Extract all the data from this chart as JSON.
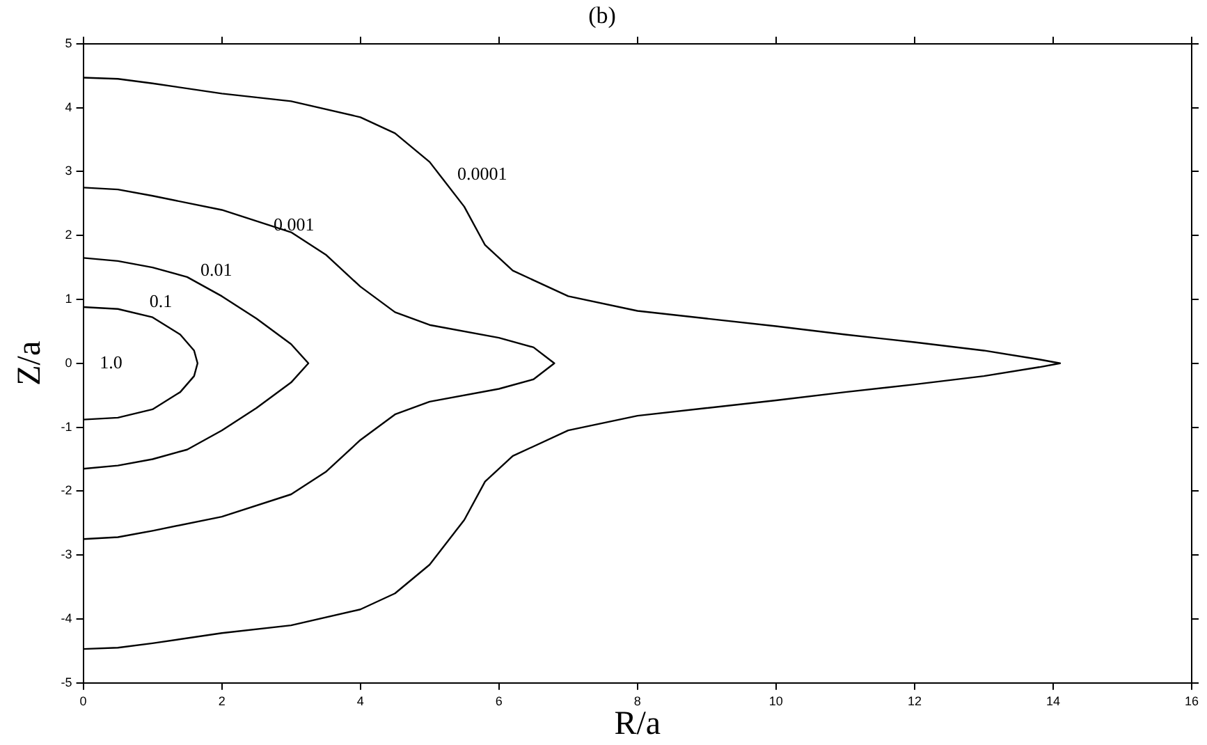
{
  "chart_data": {
    "type": "line",
    "title": "(b)",
    "xlabel": "R/a",
    "ylabel": "Z/a",
    "xlim": [
      0,
      16
    ],
    "xticks": [
      0,
      2,
      4,
      6,
      8,
      10,
      12,
      14,
      16
    ],
    "ylim": [
      -5,
      5
    ],
    "yticks": [
      -5,
      -4,
      -3,
      -2,
      -1,
      0,
      1,
      2,
      3,
      4,
      5
    ],
    "grid": false,
    "legend": false,
    "marker": "none",
    "line_style": "solid",
    "series": [
      {
        "color": "#000000",
        "x": [
          0,
          0.5,
          1.0,
          1.4,
          1.6,
          1.65,
          1.6,
          1.4,
          1.0,
          0.5,
          0
        ],
        "values": [
          0.88,
          0.85,
          0.72,
          0.45,
          0.2,
          0,
          -0.2,
          -0.45,
          -0.72,
          -0.85,
          -0.88
        ]
      },
      {
        "color": "#000000",
        "x": [
          0,
          0.5,
          1.0,
          1.5,
          2.0,
          2.5,
          3.0,
          3.25,
          3.0,
          2.5,
          2.0,
          1.5,
          1.0,
          0.5,
          0
        ],
        "values": [
          1.65,
          1.6,
          1.5,
          1.35,
          1.05,
          0.7,
          0.3,
          0,
          -0.3,
          -0.7,
          -1.05,
          -1.35,
          -1.5,
          -1.6,
          -1.65
        ]
      },
      {
        "color": "#000000",
        "x": [
          0,
          0.5,
          1,
          2,
          3,
          3.5,
          4,
          4.5,
          5,
          6,
          6.5,
          6.8,
          6.5,
          6,
          5,
          4.5,
          4,
          3.5,
          3,
          2,
          1,
          0.5,
          0
        ],
        "values": [
          2.75,
          2.72,
          2.62,
          2.4,
          2.05,
          1.7,
          1.2,
          0.8,
          0.6,
          0.4,
          0.25,
          0,
          -0.25,
          -0.4,
          -0.6,
          -0.8,
          -1.2,
          -1.7,
          -2.05,
          -2.4,
          -2.62,
          -2.72,
          -2.75
        ]
      },
      {
        "color": "#000000",
        "x": [
          0,
          0.5,
          1,
          2,
          3,
          4,
          4.5,
          5,
          5.5,
          5.8,
          6.2,
          7,
          8,
          9,
          10,
          11,
          12,
          13,
          13.8,
          14.1,
          13.8,
          13,
          12,
          11,
          10,
          9,
          8,
          7,
          6.2,
          5.8,
          5.5,
          5,
          4.5,
          4,
          3,
          2,
          1,
          0.5,
          0
        ],
        "values": [
          4.47,
          4.45,
          4.38,
          4.22,
          4.1,
          3.85,
          3.6,
          3.15,
          2.45,
          1.85,
          1.45,
          1.05,
          0.82,
          0.7,
          0.58,
          0.45,
          0.33,
          0.2,
          0.06,
          0,
          -0.06,
          -0.2,
          -0.33,
          -0.45,
          -0.58,
          -0.7,
          -0.82,
          -1.05,
          -1.45,
          -1.85,
          -2.45,
          -3.15,
          -3.6,
          -3.85,
          -4.1,
          -4.22,
          -4.38,
          -4.45,
          -4.47
        ]
      }
    ],
    "annotations": [
      "0.0001",
      "0.001",
      "0.01",
      "0.1",
      "1.0"
    ]
  }
}
